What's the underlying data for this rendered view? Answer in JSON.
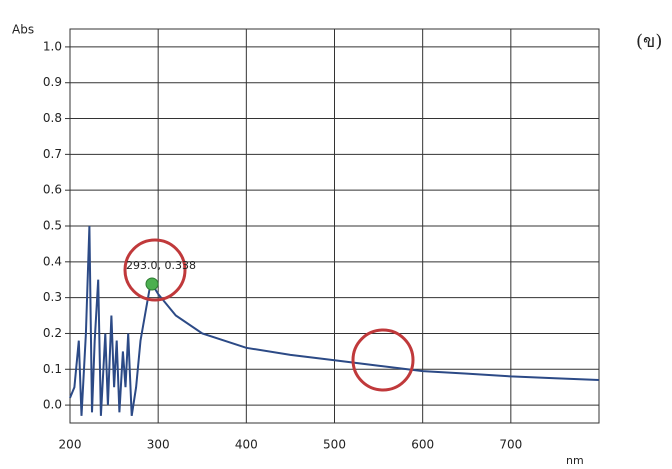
{
  "chart_data": {
    "type": "line",
    "label": "(ข)",
    "xlabel": "nm",
    "ylabel": "Abs",
    "x": [
      200,
      205,
      210,
      213,
      218,
      222,
      225,
      228,
      232,
      235,
      240,
      243,
      247,
      250,
      253,
      256,
      260,
      263,
      266,
      270,
      275,
      280,
      285,
      290,
      293,
      300,
      320,
      350,
      400,
      450,
      500,
      550,
      600,
      650,
      700,
      750,
      800
    ],
    "series": [
      {
        "color": "#2c4a86",
        "values": [
          0.02,
          0.05,
          0.18,
          -0.03,
          0.2,
          0.5,
          -0.02,
          0.18,
          0.35,
          -0.03,
          0.2,
          0.0,
          0.25,
          0.05,
          0.18,
          -0.02,
          0.15,
          0.05,
          0.2,
          -0.03,
          0.05,
          0.18,
          0.25,
          0.32,
          0.338,
          0.31,
          0.25,
          0.2,
          0.16,
          0.14,
          0.125,
          0.11,
          0.095,
          0.088,
          0.08,
          0.075,
          0.07
        ]
      }
    ],
    "annotation": {
      "text": "293.0, 0.338",
      "x": 293,
      "y": 0.338,
      "color": "#4caf50"
    },
    "xlim": [
      200,
      800
    ],
    "xticks": [
      200,
      300,
      400,
      500,
      600,
      700
    ],
    "ylim": [
      -0.05,
      1.05
    ],
    "yticks": [
      {
        "value": 0,
        "label": "0.0"
      },
      0.1,
      0.2,
      0.3,
      0.4,
      0.5,
      0.6,
      0.7,
      0.8,
      0.9,
      {
        "value": 1,
        "label": "1.0"
      }
    ],
    "grid": true
  }
}
